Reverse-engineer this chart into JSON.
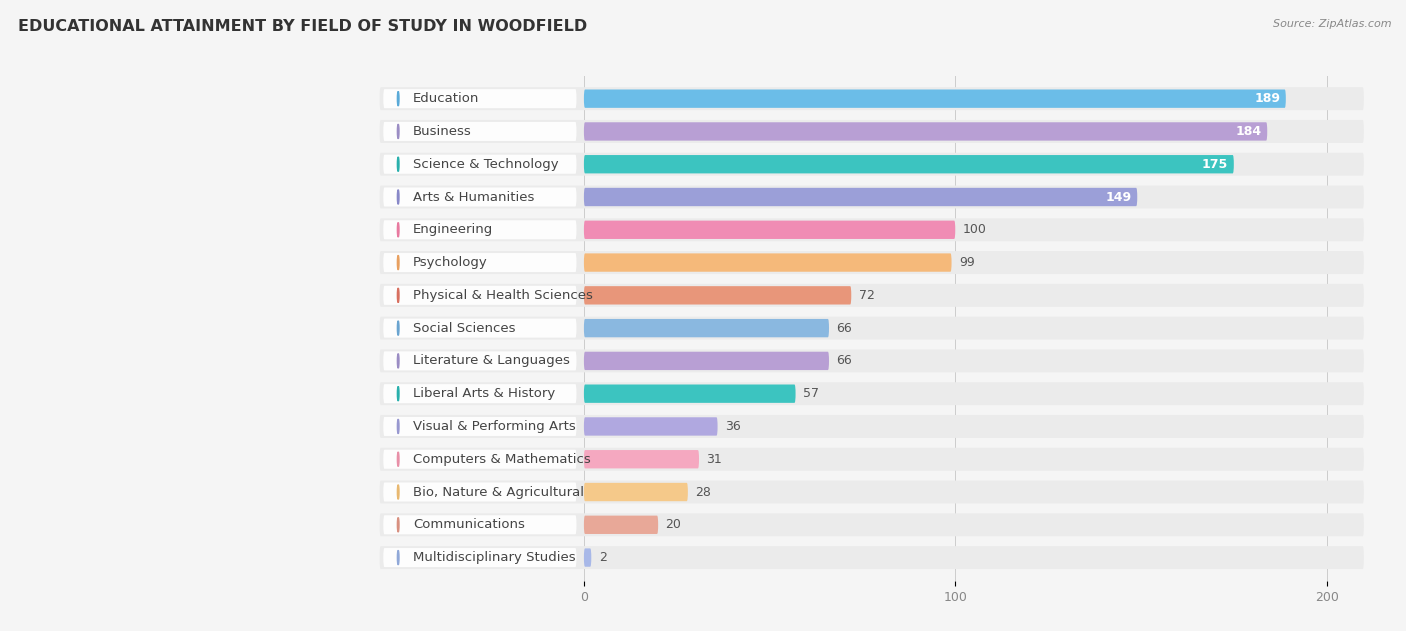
{
  "title": "EDUCATIONAL ATTAINMENT BY FIELD OF STUDY IN WOODFIELD",
  "source": "Source: ZipAtlas.com",
  "categories": [
    "Education",
    "Business",
    "Science & Technology",
    "Arts & Humanities",
    "Engineering",
    "Psychology",
    "Physical & Health Sciences",
    "Social Sciences",
    "Literature & Languages",
    "Liberal Arts & History",
    "Visual & Performing Arts",
    "Computers & Mathematics",
    "Bio, Nature & Agricultural",
    "Communications",
    "Multidisciplinary Studies"
  ],
  "values": [
    189,
    184,
    175,
    149,
    100,
    99,
    72,
    66,
    66,
    57,
    36,
    31,
    28,
    20,
    2
  ],
  "bar_colors": [
    "#6bbde8",
    "#b89fd4",
    "#3cc4c0",
    "#9b9fd8",
    "#f08cb4",
    "#f5b97a",
    "#e8967a",
    "#8ab8e0",
    "#b89fd4",
    "#3cc4c0",
    "#b0a8e0",
    "#f5a8c0",
    "#f5c98a",
    "#e8a898",
    "#a8b8e8"
  ],
  "label_dot_colors": [
    "#5aaad8",
    "#9b8dc4",
    "#2ab0ac",
    "#8888c8",
    "#e87aa0",
    "#e8a060",
    "#d87060",
    "#6aa4d0",
    "#9b8dc4",
    "#2ab0ac",
    "#9898d0",
    "#e890a8",
    "#e8b870",
    "#d89080",
    "#90a8d8"
  ],
  "xlim": [
    0,
    200
  ],
  "x_axis_start": 0,
  "xticks": [
    0,
    100,
    200
  ],
  "background_color": "#f5f5f5",
  "row_bg_color": "#ebebeb",
  "title_fontsize": 11.5,
  "label_fontsize": 9.5,
  "value_fontsize": 9,
  "source_fontsize": 8
}
